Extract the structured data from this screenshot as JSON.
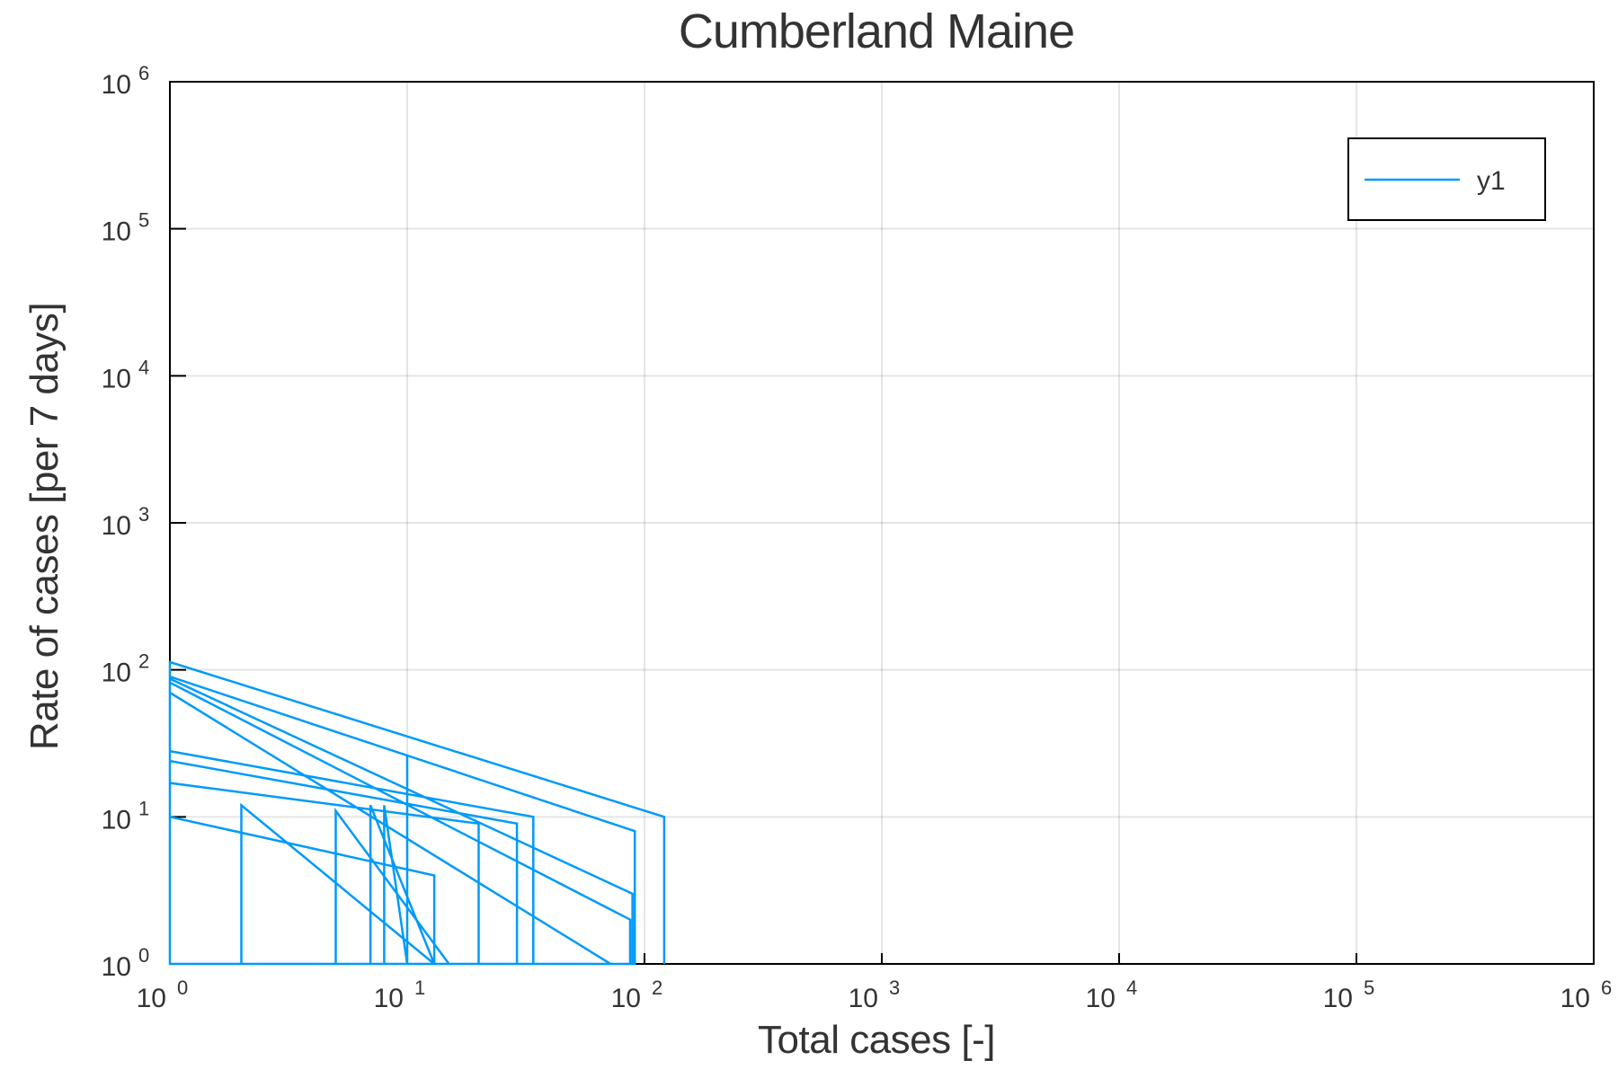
{
  "chart_data": {
    "type": "line",
    "title": "Cumberland Maine",
    "xlabel": "Total cases [-]",
    "ylabel": "Rate of cases [per 7 days]",
    "xscale": "log",
    "yscale": "log",
    "xlim": [
      1,
      1000000
    ],
    "ylim": [
      1,
      1000000
    ],
    "grid": true,
    "legend_position": "top-right",
    "x_ticks": [
      {
        "base": "10",
        "exp": "0",
        "value": 1
      },
      {
        "base": "10",
        "exp": "1",
        "value": 10
      },
      {
        "base": "10",
        "exp": "2",
        "value": 100
      },
      {
        "base": "10",
        "exp": "3",
        "value": 1000
      },
      {
        "base": "10",
        "exp": "4",
        "value": 10000
      },
      {
        "base": "10",
        "exp": "5",
        "value": 100000
      },
      {
        "base": "10",
        "exp": "6",
        "value": 1000000
      }
    ],
    "y_ticks": [
      {
        "base": "10",
        "exp": "0",
        "value": 1
      },
      {
        "base": "10",
        "exp": "1",
        "value": 10
      },
      {
        "base": "10",
        "exp": "2",
        "value": 100
      },
      {
        "base": "10",
        "exp": "3",
        "value": 1000
      },
      {
        "base": "10",
        "exp": "4",
        "value": 10000
      },
      {
        "base": "10",
        "exp": "5",
        "value": 100000
      },
      {
        "base": "10",
        "exp": "6",
        "value": 1000000
      }
    ],
    "series": [
      {
        "name": "y1",
        "color": "#009af9",
        "points": [
          [
            1,
            1
          ],
          [
            1,
            10
          ],
          [
            13,
            4
          ],
          [
            13,
            1
          ],
          [
            2,
            1
          ],
          [
            2,
            12
          ],
          [
            13,
            1
          ],
          [
            5,
            1
          ],
          [
            5,
            11
          ],
          [
            15,
            1
          ],
          [
            7,
            1
          ],
          [
            7,
            12
          ],
          [
            13,
            1
          ],
          [
            8,
            1
          ],
          [
            8,
            12
          ],
          [
            10,
            1
          ],
          [
            10,
            26
          ],
          [
            10,
            1
          ],
          [
            1,
            1
          ],
          [
            1,
            17
          ],
          [
            20,
            9
          ],
          [
            20,
            1
          ],
          [
            1,
            1
          ],
          [
            1,
            24
          ],
          [
            29,
            9
          ],
          [
            29,
            1
          ],
          [
            1,
            1
          ],
          [
            1,
            28
          ],
          [
            34,
            10
          ],
          [
            34,
            1
          ],
          [
            1,
            1
          ],
          [
            1,
            70
          ],
          [
            72,
            1
          ],
          [
            1,
            1
          ],
          [
            1,
            82
          ],
          [
            87,
            2
          ],
          [
            87,
            1
          ],
          [
            1,
            1
          ],
          [
            1,
            87
          ],
          [
            89,
            3
          ],
          [
            89,
            1
          ],
          [
            1,
            1
          ],
          [
            1,
            90
          ],
          [
            91,
            8
          ],
          [
            91,
            1
          ],
          [
            1,
            1
          ],
          [
            1,
            113
          ],
          [
            121,
            10
          ],
          [
            121,
            1
          ]
        ]
      }
    ]
  }
}
